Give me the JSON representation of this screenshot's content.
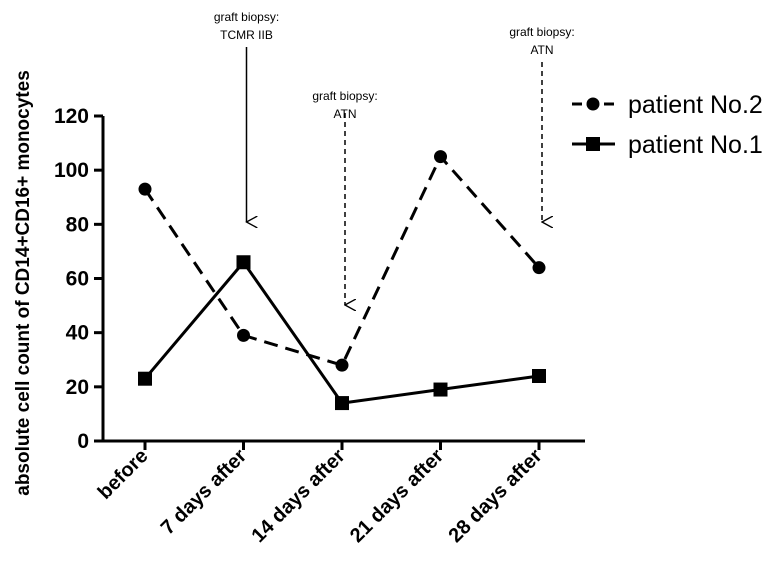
{
  "chart_data": {
    "type": "line",
    "categories": [
      "before",
      "7 days after",
      "14 days after",
      "21 days after",
      "28 days after"
    ],
    "ylabel": "absolute cell count of CD14+CD16+ monocytes",
    "xlabel": "",
    "ylim": [
      0,
      120
    ],
    "yticks": [
      0,
      20,
      40,
      60,
      80,
      100,
      120
    ],
    "grid": false,
    "legend_position": "top-right",
    "series": [
      {
        "name": "patient No.2",
        "values": [
          93,
          39,
          28,
          105,
          64
        ],
        "line_style": "dashed",
        "marker": "circle",
        "color": "#000000"
      },
      {
        "name": "patient No.1",
        "values": [
          23,
          66,
          14,
          19,
          24
        ],
        "line_style": "solid",
        "marker": "square",
        "color": "#000000"
      }
    ],
    "annotations": [
      {
        "category_index": 1,
        "lines": [
          "graft biopsy:",
          "TCMR IIB"
        ],
        "arrow_style": "solid"
      },
      {
        "category_index": 2,
        "lines": [
          "graft biopsy:",
          "ATN"
        ],
        "arrow_style": "dashed"
      },
      {
        "category_index": 4,
        "lines": [
          "graft biopsy:",
          "ATN"
        ],
        "arrow_style": "dashed"
      }
    ]
  }
}
